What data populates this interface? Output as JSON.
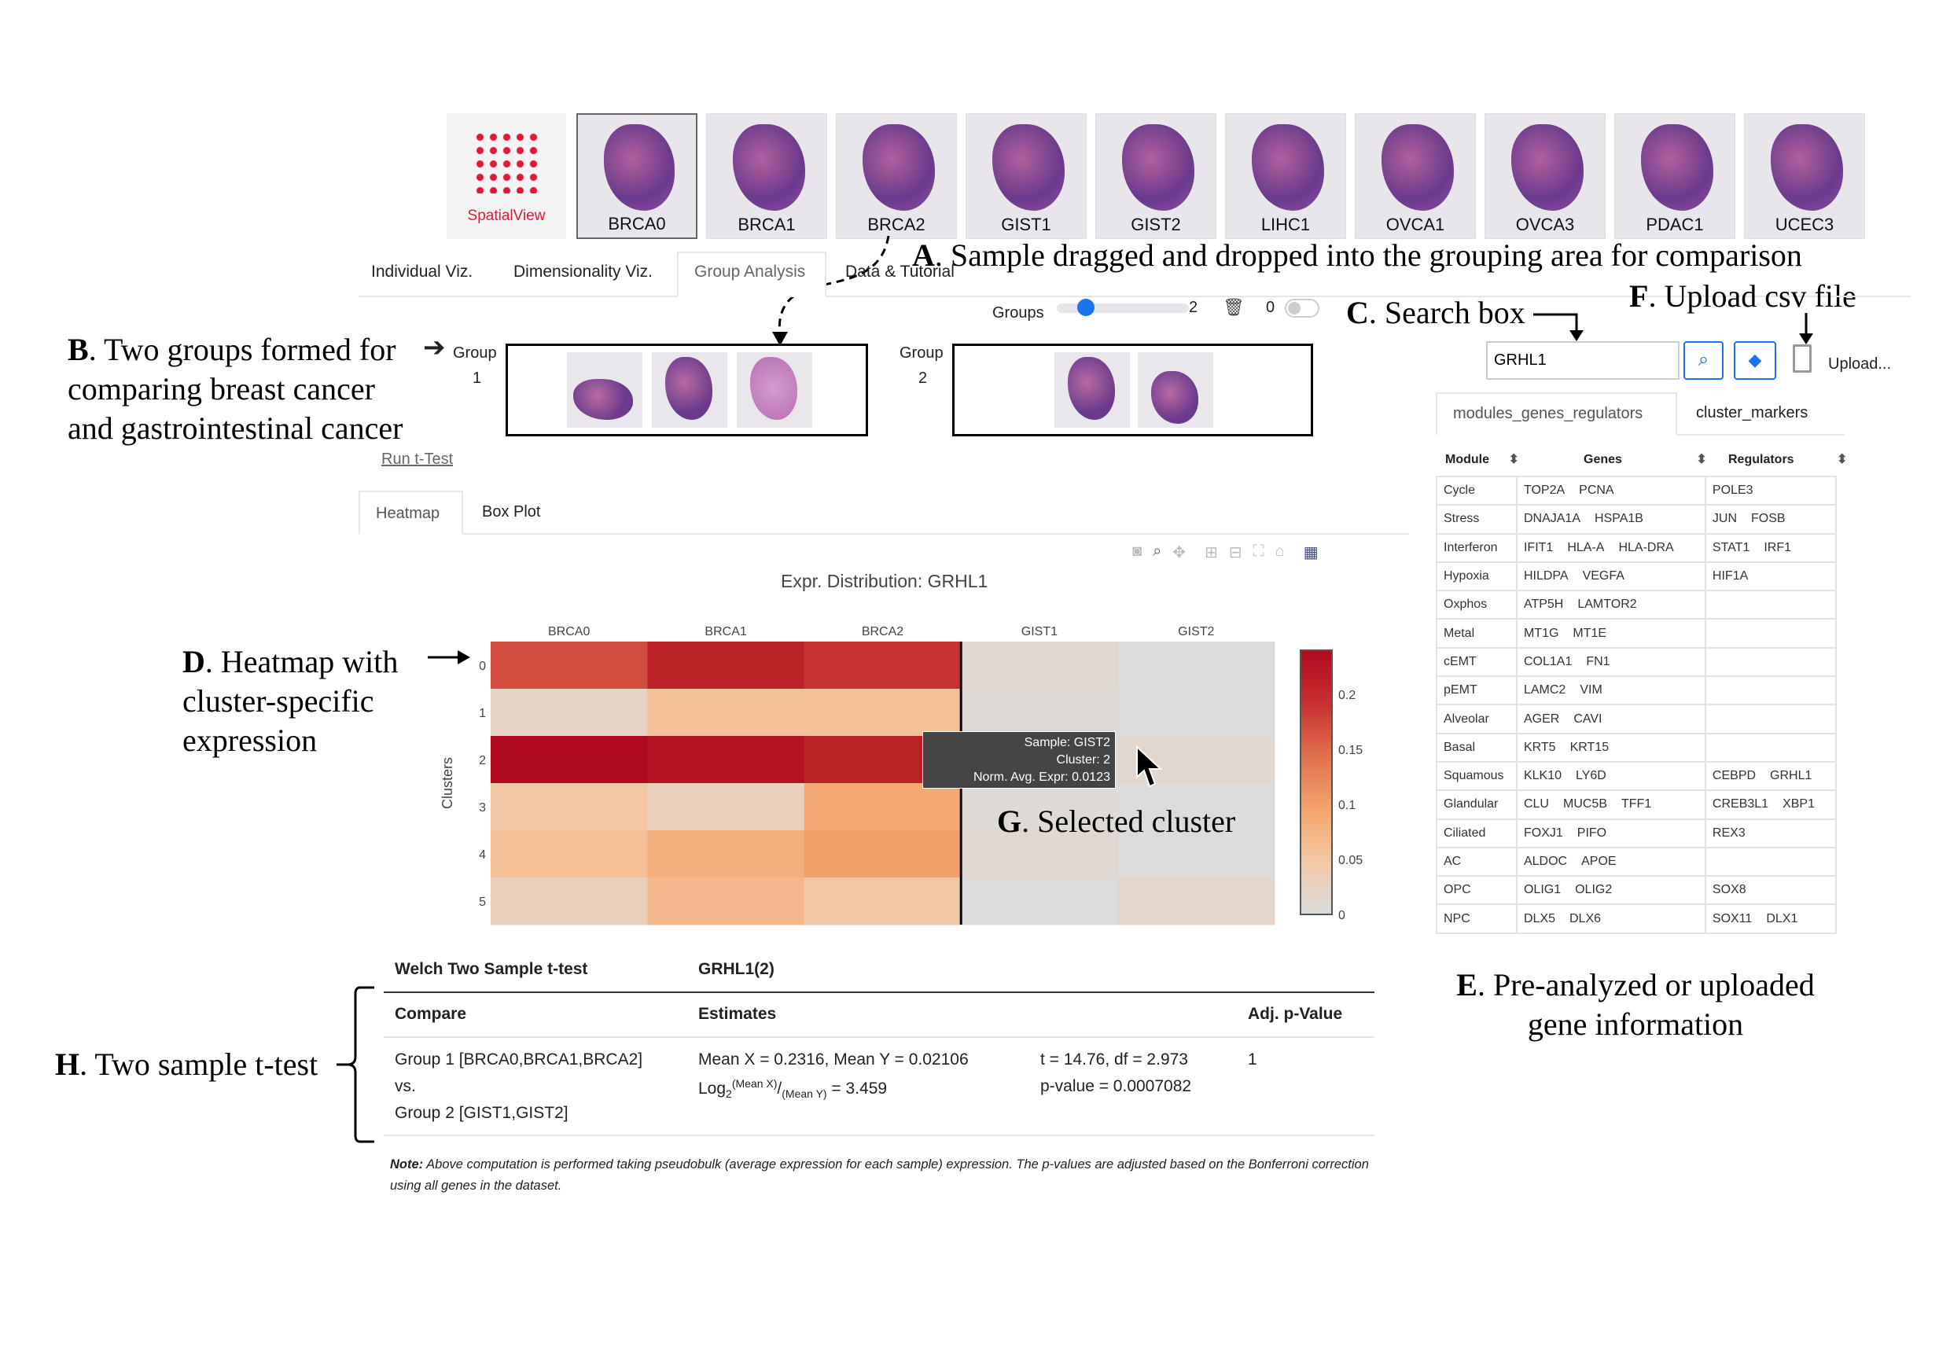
{
  "logo": {
    "label": "SpatialView",
    "color": "#e0193a"
  },
  "samples": [
    "BRCA0",
    "BRCA1",
    "BRCA2",
    "GIST1",
    "GIST2",
    "LIHC1",
    "OVCA1",
    "OVCA3",
    "PDAC1",
    "UCEC3"
  ],
  "main_tabs": [
    {
      "label": "Individual Viz."
    },
    {
      "label": "Dimensionality Viz."
    },
    {
      "label": "Group Analysis",
      "active": true
    },
    {
      "label": "Data & Tutorial"
    }
  ],
  "groups_control": {
    "label": "Groups",
    "value": 2,
    "max": 2,
    "toggle_label": "0"
  },
  "groups": [
    {
      "label": "Group",
      "number": "1",
      "samples": [
        "BRCA0",
        "BRCA1",
        "BRCA2"
      ]
    },
    {
      "label": "Group",
      "number": "2",
      "samples": [
        "GIST1",
        "GIST2"
      ]
    }
  ],
  "run_ttest_label": "Run t-Test",
  "plot_tabs": [
    {
      "label": "Heatmap",
      "active": true
    },
    {
      "label": "Box Plot"
    }
  ],
  "toolbar_icons": [
    "camera-icon",
    "zoom-icon",
    "pan-icon",
    "zoom-in-icon",
    "zoom-out-icon",
    "autoscale-icon",
    "reset-icon",
    "plotly-logo-icon"
  ],
  "search": {
    "value": "GRHL1",
    "upload_label": "Upload..."
  },
  "gene_tabs": [
    {
      "label": "modules_genes_regulators",
      "active": true
    },
    {
      "label": "cluster_markers"
    }
  ],
  "module_table": {
    "headers": [
      "Module",
      "Genes",
      "Regulators"
    ],
    "rows": [
      {
        "module": "Cycle",
        "genes": [
          "TOP2A",
          "PCNA"
        ],
        "regulators": [
          "POLE3"
        ]
      },
      {
        "module": "Stress",
        "genes": [
          "DNAJA1A",
          "HSPA1B"
        ],
        "regulators": [
          "JUN",
          "FOSB"
        ]
      },
      {
        "module": "Interferon",
        "genes": [
          "IFIT1",
          "HLA-A",
          "HLA-DRA"
        ],
        "regulators": [
          "STAT1",
          "IRF1"
        ]
      },
      {
        "module": "Hypoxia",
        "genes": [
          "HILDPA",
          "VEGFA"
        ],
        "regulators": [
          "HIF1A"
        ]
      },
      {
        "module": "Oxphos",
        "genes": [
          "ATP5H",
          "LAMTOR2"
        ],
        "regulators": []
      },
      {
        "module": "Metal",
        "genes": [
          "MT1G",
          "MT1E"
        ],
        "regulators": []
      },
      {
        "module": "cEMT",
        "genes": [
          "COL1A1",
          "FN1"
        ],
        "regulators": []
      },
      {
        "module": "pEMT",
        "genes": [
          "LAMC2",
          "VIM"
        ],
        "regulators": []
      },
      {
        "module": "Alveolar",
        "genes": [
          "AGER",
          "CAVI"
        ],
        "regulators": []
      },
      {
        "module": "Basal",
        "genes": [
          "KRT5",
          "KRT15"
        ],
        "regulators": []
      },
      {
        "module": "Squamous",
        "genes": [
          "KLK10",
          "LY6D"
        ],
        "regulators": [
          "CEBPD",
          "GRHL1"
        ]
      },
      {
        "module": "Glandular",
        "genes": [
          "CLU",
          "MUC5B",
          "TFF1"
        ],
        "regulators": [
          "CREB3L1",
          "XBP1"
        ]
      },
      {
        "module": "Ciliated",
        "genes": [
          "FOXJ1",
          "PIFO"
        ],
        "regulators": [
          "REX3"
        ]
      },
      {
        "module": "AC",
        "genes": [
          "ALDOC",
          "APOE"
        ],
        "regulators": []
      },
      {
        "module": "OPC",
        "genes": [
          "OLIG1",
          "OLIG2"
        ],
        "regulators": [
          "SOX8"
        ]
      },
      {
        "module": "NPC",
        "genes": [
          "DLX5",
          "DLX6"
        ],
        "regulators": [
          "SOX11",
          "DLX1"
        ]
      }
    ]
  },
  "chart_data": {
    "type": "heatmap",
    "title": "Expr. Distribution: GRHL1",
    "ylabel": "Clusters",
    "x": [
      "BRCA0",
      "BRCA1",
      "BRCA2",
      "GIST1",
      "GIST2"
    ],
    "y": [
      "0",
      "1",
      "2",
      "3",
      "4",
      "5"
    ],
    "z": [
      [
        0.17,
        0.21,
        0.19,
        0.01,
        0.0
      ],
      [
        0.02,
        0.06,
        0.06,
        0.005,
        0.0
      ],
      [
        0.24,
        0.23,
        0.21,
        0.01,
        0.0123
      ],
      [
        0.05,
        0.03,
        0.09,
        0.005,
        0.0
      ],
      [
        0.06,
        0.08,
        0.1,
        0.01,
        0.0
      ],
      [
        0.03,
        0.07,
        0.05,
        0.0,
        0.015
      ]
    ],
    "zrange": [
      0,
      0.24
    ],
    "colorbar_ticks": [
      "0.2",
      "0.15",
      "0.1",
      "0.05",
      "0"
    ],
    "colorbar_tick_values": [
      0.2,
      0.15,
      0.1,
      0.05,
      0
    ],
    "colorscale": [
      "#dcdcdc",
      "#f2c9a6",
      "#f4a46c",
      "#e0704e",
      "#c63030",
      "#b10a1e"
    ],
    "tooltip": [
      "Sample: GIST2",
      "Cluster: 2",
      "Norm. Avg. Expr: 0.0123"
    ]
  },
  "ttest": {
    "title": "Welch Two Sample t-test",
    "gene": "GRHL1(2)",
    "headers": [
      "Compare",
      "Estimates",
      "Adj. p-Value"
    ],
    "compare": [
      "Group 1 [BRCA0,BRCA1,BRCA2]",
      "vs.",
      "Group 2 [GIST1,GIST2]"
    ],
    "estimates_line1": "Mean X = 0.2316, Mean Y = 0.02106",
    "log_prefix": "Log",
    "log_sub": "2",
    "log_sup": "(Mean X)",
    "log_slash": "/",
    "log_den": "(Mean Y)",
    "log_value": " = 3.459",
    "stat_line1": "t = 14.76, df = 2.973",
    "stat_line2": "p-value = 0.0007082",
    "adj_p": "1",
    "note_label": "Note:",
    "note_text": " Above computation is performed taking pseudobulk (average expression for each sample) expression. The p-values are adjusted based on the Bonferroni correction using all genes in the dataset."
  },
  "annotations": {
    "A": {
      "letter": "A",
      "text": ". Sample dragged and dropped into the grouping area for comparison"
    },
    "B": {
      "letter": "B",
      "lines": [
        ". Two groups formed for",
        "comparing breast cancer",
        "and gastrointestinal cancer"
      ]
    },
    "C": {
      "letter": "C",
      "text": ". Search box"
    },
    "D": {
      "letter": "D",
      "lines": [
        ". Heatmap with",
        "cluster-specific",
        "expression"
      ]
    },
    "E": {
      "letter": "E",
      "lines": [
        ". Pre-analyzed or uploaded",
        "gene information"
      ]
    },
    "F": {
      "letter": "F",
      "text": ". Upload csv file"
    },
    "G": {
      "letter": "G",
      "text": ". Selected cluster"
    },
    "H": {
      "letter": "H",
      "text": ". Two sample t-test"
    }
  }
}
